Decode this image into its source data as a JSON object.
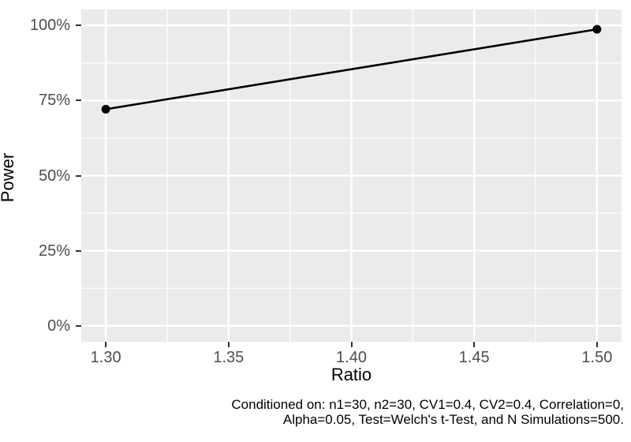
{
  "chart_data": {
    "type": "line",
    "title": "",
    "xlabel": "Ratio",
    "ylabel": "Power",
    "xlim": [
      1.29,
      1.51
    ],
    "ylim": [
      -5.3,
      105.3
    ],
    "x_ticks": [
      1.3,
      1.35,
      1.4,
      1.45,
      1.5
    ],
    "x_tick_labels": [
      "1.30",
      "1.35",
      "1.40",
      "1.45",
      "1.50"
    ],
    "y_ticks": [
      0,
      25,
      50,
      75,
      100
    ],
    "y_tick_labels": [
      "0%",
      "25%",
      "50%",
      "75%",
      "100%"
    ],
    "grid": "ggplot gray panel, white major and minor gridlines, minors at midpoints",
    "legend_position": "none",
    "series": [
      {
        "name": "Power",
        "x": [
          1.3,
          1.5
        ],
        "y": [
          72.1,
          98.7
        ]
      }
    ],
    "caption_lines": [
      "Conditioned on: n1=30, n2=30, CV1=0.4, CV2=0.4, Correlation=0,",
      "Alpha=0.05, Test=Welch's t-Test, and N Simulations=500."
    ]
  },
  "colors": {
    "panel_background": "#EBEBEB",
    "gridline": "#FFFFFF",
    "tick_label": "#4D4D4D",
    "tick_mark": "#333333",
    "axis_title": "#000000",
    "series_line": "#000000",
    "caption_text": "#000000",
    "page_background": "#FFFFFF"
  }
}
